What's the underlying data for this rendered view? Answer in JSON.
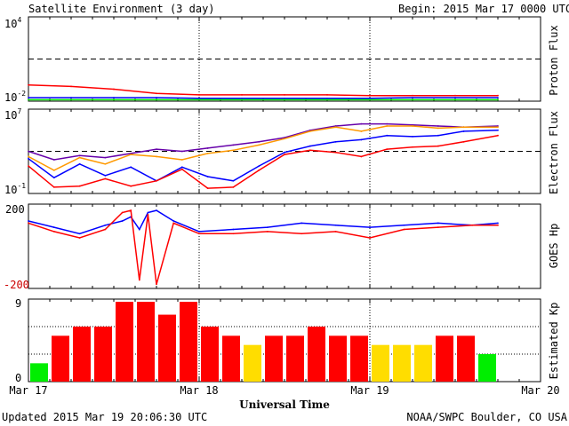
{
  "header": {
    "title": "Satellite Environment (3 day)",
    "begin": "Begin:  2015 Mar 17 0000 UTC"
  },
  "footer": {
    "updated": "Updated 2015 Mar 19 20:06:30 UTC",
    "source": "NOAA/SWPC Boulder, CO USA",
    "xlabel": "Universal Time"
  },
  "x_ticks": [
    "Mar 17",
    "Mar 18",
    "Mar 19",
    "Mar 20"
  ],
  "colors": {
    "red": "#ff0000",
    "blue": "#0000ff",
    "green": "#00ee00",
    "purple": "#6600aa",
    "orange": "#ff9900",
    "yellow": "#ffdd00"
  },
  "chart_data": [
    {
      "type": "line",
      "ylabel": "Proton Flux",
      "y_tick_labels": {
        "top": "10",
        "top_exp": "4",
        "bottom": "10",
        "bottom_exp": "-2"
      },
      "ylim": [
        -2,
        4
      ],
      "log_scale": true,
      "threshold_log": 1,
      "x": [
        0,
        0.25,
        0.5,
        0.75,
        1.0,
        1.25,
        1.5,
        1.75,
        2.0,
        2.25,
        2.5,
        2.75
      ],
      "series": [
        {
          "color": "red",
          "values": [
            -0.85,
            -0.95,
            -1.15,
            -1.45,
            -1.55,
            -1.55,
            -1.55,
            -1.55,
            -1.6,
            -1.6,
            -1.6,
            -1.6
          ]
        },
        {
          "color": "blue",
          "values": [
            -1.75,
            -1.75,
            -1.75,
            -1.75,
            -1.8,
            -1.8,
            -1.8,
            -1.8,
            -1.8,
            -1.75,
            -1.75,
            -1.75
          ]
        },
        {
          "color": "green",
          "values": [
            -1.9,
            -1.9,
            -1.9,
            -1.9,
            -1.9,
            -1.9,
            -1.9,
            -1.9,
            -1.9,
            -1.9,
            -1.9,
            -1.9
          ]
        }
      ]
    },
    {
      "type": "line",
      "ylabel": "Electron Flux",
      "y_tick_labels": {
        "top": "10",
        "top_exp": "7",
        "bottom": "10",
        "bottom_exp": "-1"
      },
      "ylim": [
        -1,
        7
      ],
      "log_scale": true,
      "threshold_log": 3,
      "x": [
        0,
        0.15,
        0.3,
        0.45,
        0.6,
        0.75,
        0.9,
        1.05,
        1.2,
        1.35,
        1.5,
        1.65,
        1.8,
        1.95,
        2.1,
        2.25,
        2.4,
        2.55,
        2.75
      ],
      "series": [
        {
          "color": "purple",
          "values": [
            3.0,
            2.2,
            2.6,
            2.4,
            2.8,
            3.2,
            3.0,
            3.3,
            3.6,
            3.9,
            4.3,
            5.0,
            5.4,
            5.6,
            5.6,
            5.5,
            5.4,
            5.3,
            5.4
          ]
        },
        {
          "color": "orange",
          "values": [
            2.5,
            1.2,
            2.4,
            1.8,
            2.7,
            2.5,
            2.2,
            2.8,
            3.1,
            3.6,
            4.2,
            4.9,
            5.3,
            4.9,
            5.4,
            5.4,
            5.2,
            5.3,
            5.3
          ]
        },
        {
          "color": "blue",
          "values": [
            2.3,
            0.5,
            1.8,
            0.7,
            1.5,
            0.2,
            1.5,
            0.6,
            0.2,
            1.6,
            2.9,
            3.5,
            3.9,
            4.1,
            4.5,
            4.4,
            4.5,
            4.9,
            5.0
          ]
        },
        {
          "color": "red",
          "values": [
            1.6,
            -0.4,
            -0.3,
            0.4,
            -0.3,
            0.2,
            1.3,
            -0.5,
            -0.4,
            1.2,
            2.7,
            3.1,
            2.9,
            2.5,
            3.2,
            3.4,
            3.5,
            3.9,
            4.5
          ]
        }
      ]
    },
    {
      "type": "line",
      "ylabel": "GOES Hp",
      "y_tick_labels": {
        "top": "200",
        "bottom": "-200"
      },
      "ylim": [
        -200,
        200
      ],
      "x": [
        0,
        0.15,
        0.3,
        0.45,
        0.55,
        0.6,
        0.65,
        0.7,
        0.75,
        0.85,
        1.0,
        1.2,
        1.4,
        1.6,
        1.8,
        2.0,
        2.2,
        2.4,
        2.6,
        2.75
      ],
      "series": [
        {
          "color": "blue",
          "values": [
            120,
            90,
            60,
            100,
            120,
            140,
            80,
            160,
            170,
            120,
            70,
            80,
            90,
            110,
            100,
            90,
            100,
            110,
            100,
            110
          ]
        },
        {
          "color": "red",
          "values": [
            110,
            70,
            40,
            80,
            160,
            170,
            -160,
            150,
            -180,
            110,
            60,
            60,
            70,
            60,
            70,
            40,
            80,
            90,
            100,
            100
          ]
        }
      ]
    },
    {
      "type": "bar",
      "ylabel": "Estimated Kp",
      "y_tick_labels": {
        "top": "9",
        "bottom": "0"
      },
      "ylim": [
        0,
        9
      ],
      "bin_hours": 3,
      "values": [
        2,
        5,
        6,
        6,
        8.7,
        8.7,
        7.3,
        8.7,
        6,
        5,
        4,
        5,
        5,
        6,
        5,
        5,
        4,
        4,
        4,
        5,
        5,
        3
      ],
      "bar_colors": [
        "green",
        "red",
        "red",
        "red",
        "red",
        "red",
        "red",
        "red",
        "red",
        "red",
        "yellow",
        "red",
        "red",
        "red",
        "red",
        "red",
        "yellow",
        "yellow",
        "yellow",
        "red",
        "red",
        "green"
      ]
    }
  ]
}
